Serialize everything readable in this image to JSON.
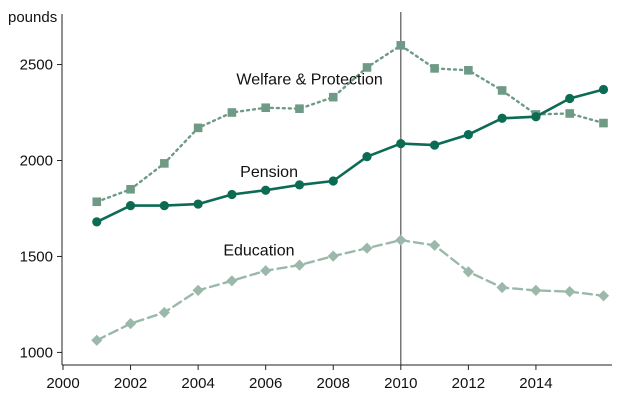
{
  "chart_data": {
    "type": "line",
    "title": "",
    "xlabel": "",
    "ylabel": "pounds",
    "xlim": [
      2000,
      2016.4
    ],
    "ylim": [
      950,
      2680
    ],
    "x_ticks": [
      2000,
      2002,
      2004,
      2006,
      2008,
      2010,
      2012,
      2014
    ],
    "y_ticks": [
      1000,
      1500,
      2000,
      2500
    ],
    "grid": false,
    "legend": "none",
    "vertical_marker_x": 2010,
    "x": [
      2001,
      2002,
      2003,
      2004,
      2005,
      2006,
      2007,
      2008,
      2009,
      2010,
      2011,
      2012,
      2013,
      2014,
      2015,
      2016
    ],
    "series": [
      {
        "name": "Welfare & Protection",
        "label_anchor": [
          2007.3,
          2395
        ],
        "color": "#6f9a86",
        "line_style": "dotted",
        "marker": "square",
        "values": [
          1785,
          1850,
          1985,
          2170,
          2250,
          2275,
          2270,
          2330,
          2485,
          2600,
          2480,
          2470,
          2365,
          2240,
          2245,
          2195
        ]
      },
      {
        "name": "Pension",
        "label_anchor": [
          2006.1,
          1915
        ],
        "color": "#0b6b53",
        "line_style": "solid",
        "marker": "circle",
        "values": [
          1680,
          1765,
          1765,
          1773,
          1823,
          1845,
          1873,
          1893,
          2020,
          2088,
          2080,
          2135,
          2220,
          2228,
          2323,
          2370
        ]
      },
      {
        "name": "Education",
        "label_anchor": [
          2005.8,
          1505
        ],
        "color": "#9bb9aa",
        "line_style": "dashed",
        "marker": "diamond",
        "values": [
          1063,
          1150,
          1208,
          1323,
          1373,
          1426,
          1455,
          1502,
          1543,
          1585,
          1558,
          1420,
          1338,
          1323,
          1317,
          1295
        ]
      }
    ]
  }
}
